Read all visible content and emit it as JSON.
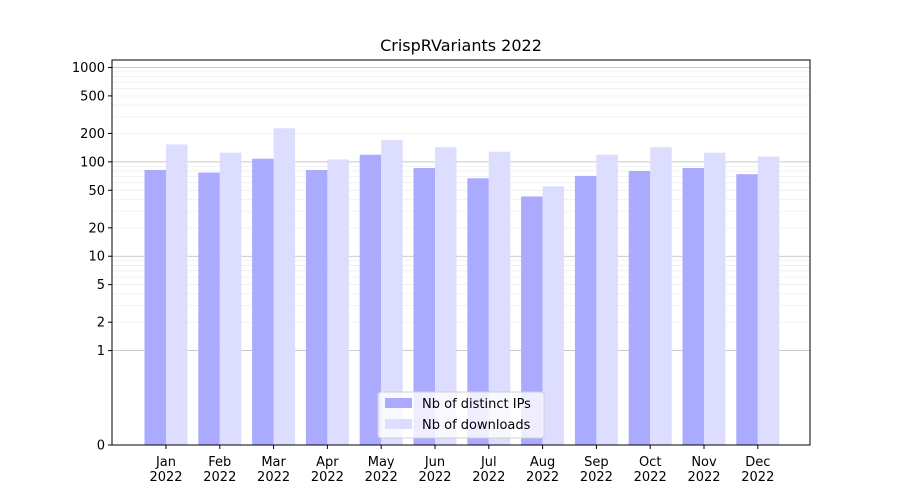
{
  "chart_data": {
    "type": "bar",
    "title": "CrispRVariants 2022",
    "xlabel": "",
    "ylabel": "",
    "y_scale": "symlog",
    "ylim": [
      0,
      1200
    ],
    "y_ticks": [
      0,
      1,
      2,
      5,
      10,
      20,
      50,
      100,
      200,
      500,
      1000
    ],
    "y_tick_labels": [
      "0",
      "1",
      "2",
      "5",
      "10",
      "20",
      "50",
      "100",
      "200",
      "500",
      "1000"
    ],
    "categories": [
      "Jan\n2022",
      "Feb\n2022",
      "Mar\n2022",
      "Apr\n2022",
      "May\n2022",
      "Jun\n2022",
      "Jul\n2022",
      "Aug\n2022",
      "Sep\n2022",
      "Oct\n2022",
      "Nov\n2022",
      "Dec\n2022"
    ],
    "series": [
      {
        "name": "Nb of distinct IPs",
        "color": "#aaaaff",
        "values": [
          82,
          77,
          108,
          82,
          119,
          86,
          67,
          43,
          71,
          80,
          86,
          74
        ]
      },
      {
        "name": "Nb of downloads",
        "color": "#ddddff",
        "values": [
          153,
          125,
          227,
          106,
          170,
          143,
          128,
          55,
          119,
          143,
          125,
          114
        ]
      }
    ],
    "grid": true,
    "legend_position": "bottom-center"
  }
}
